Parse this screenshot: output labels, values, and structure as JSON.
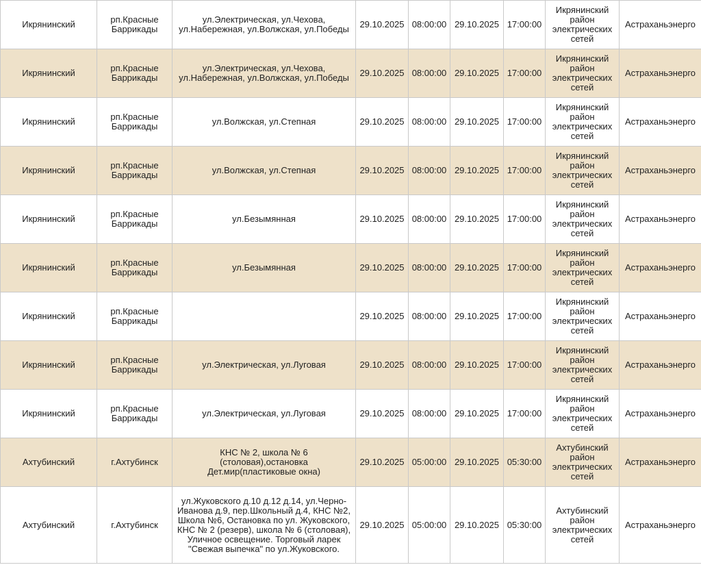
{
  "table": {
    "rows": [
      {
        "district": "Икрянинский",
        "locality": "рп.Красные Баррикады",
        "addresses": "ул.Электрическая, ул.Чехова, ул.Набережная, ул.Волжская, ул.Победы",
        "start_date": "29.10.2025",
        "start_time": "08:00:00",
        "end_date": "29.10.2025",
        "end_time": "17:00:00",
        "network": "Икрянинский район электрических сетей",
        "company": "Астраханьэнерго"
      },
      {
        "district": "Икрянинский",
        "locality": "рп.Красные Баррикады",
        "addresses": "ул.Электрическая, ул.Чехова, ул.Набережная, ул.Волжская, ул.Победы",
        "start_date": "29.10.2025",
        "start_time": "08:00:00",
        "end_date": "29.10.2025",
        "end_time": "17:00:00",
        "network": "Икрянинский район электрических сетей",
        "company": "Астраханьэнерго"
      },
      {
        "district": "Икрянинский",
        "locality": "рп.Красные Баррикады",
        "addresses": "ул.Волжская, ул.Степная",
        "start_date": "29.10.2025",
        "start_time": "08:00:00",
        "end_date": "29.10.2025",
        "end_time": "17:00:00",
        "network": "Икрянинский район электрических сетей",
        "company": "Астраханьэнерго"
      },
      {
        "district": "Икрянинский",
        "locality": "рп.Красные Баррикады",
        "addresses": "ул.Волжская, ул.Степная",
        "start_date": "29.10.2025",
        "start_time": "08:00:00",
        "end_date": "29.10.2025",
        "end_time": "17:00:00",
        "network": "Икрянинский район электрических сетей",
        "company": "Астраханьэнерго"
      },
      {
        "district": "Икрянинский",
        "locality": "рп.Красные Баррикады",
        "addresses": "ул.Безымянная",
        "start_date": "29.10.2025",
        "start_time": "08:00:00",
        "end_date": "29.10.2025",
        "end_time": "17:00:00",
        "network": "Икрянинский район электрических сетей",
        "company": "Астраханьэнерго"
      },
      {
        "district": "Икрянинский",
        "locality": "рп.Красные Баррикады",
        "addresses": "ул.Безымянная",
        "start_date": "29.10.2025",
        "start_time": "08:00:00",
        "end_date": "29.10.2025",
        "end_time": "17:00:00",
        "network": "Икрянинский район электрических сетей",
        "company": "Астраханьэнерго"
      },
      {
        "district": "Икрянинский",
        "locality": "рп.Красные Баррикады",
        "start_date": "29.10.2025",
        "start_time": "08:00:00",
        "end_date": "29.10.2025",
        "end_time": "17:00:00",
        "network": "Икрянинский район электрических сетей",
        "company": "Астраханьэнерго"
      },
      {
        "district": "Икрянинский",
        "locality": "рп.Красные Баррикады",
        "addresses": "ул.Электрическая, ул.Луговая",
        "start_date": "29.10.2025",
        "start_time": "08:00:00",
        "end_date": "29.10.2025",
        "end_time": "17:00:00",
        "network": "Икрянинский район электрических сетей",
        "company": "Астраханьэнерго"
      },
      {
        "district": "Икрянинский",
        "locality": "рп.Красные Баррикады",
        "addresses": "ул.Электрическая, ул.Луговая",
        "start_date": "29.10.2025",
        "start_time": "08:00:00",
        "end_date": "29.10.2025",
        "end_time": "17:00:00",
        "network": "Икрянинский район электрических сетей",
        "company": "Астраханьэнерго"
      },
      {
        "district": "Ахтубинский",
        "locality": "г.Ахтубинск",
        "addresses": "КНС № 2, школа № 6 (столовая),остановка Дет.мир(пластиковые окна)",
        "start_date": "29.10.2025",
        "start_time": "05:00:00",
        "end_date": "29.10.2025",
        "end_time": "05:30:00",
        "network": "Ахтубинский район электрических сетей",
        "company": "Астраханьэнерго"
      },
      {
        "district": "Ахтубинский",
        "locality": "г.Ахтубинск",
        "addresses": "ул.Жуковского д.10 д.12 д.14, ул.Черно-Иванова д.9, пер.Школьный д.4, КНС №2, Школа №6, Остановка по ул. Жуковского, КНС № 2 (резерв), школа № 6 (столовая), Уличное освещение. Торговый ларек \"Свежая выпечка\" по ул.Жуковского.",
        "start_date": "29.10.2025",
        "start_time": "05:00:00",
        "end_date": "29.10.2025",
        "end_time": "05:30:00",
        "network": "Ахтубинский район электрических сетей",
        "company": "Астраханьэнерго"
      }
    ]
  }
}
